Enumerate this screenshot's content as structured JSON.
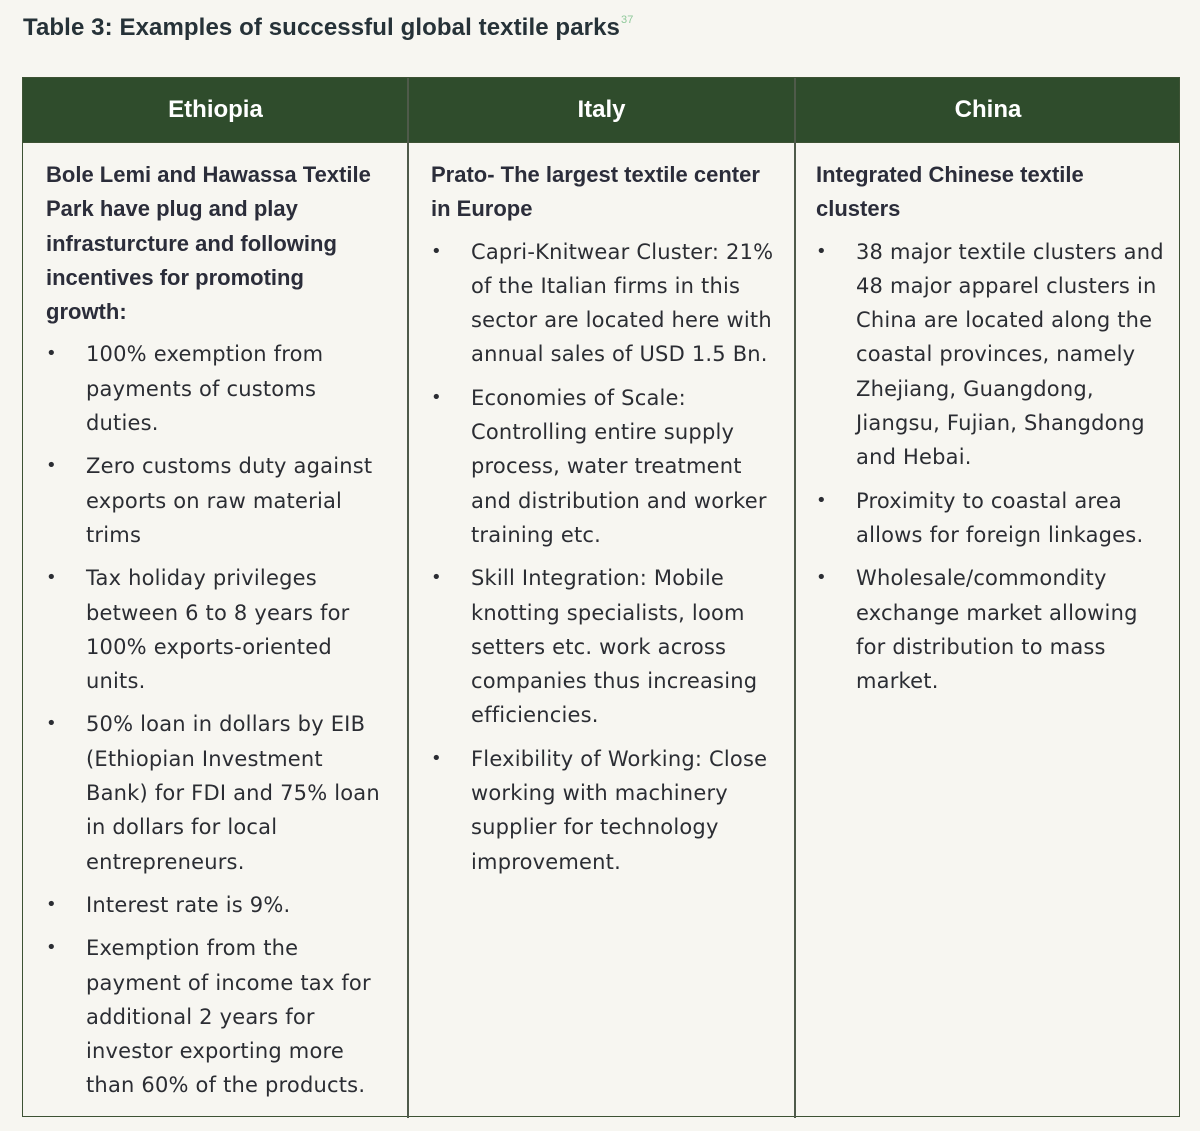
{
  "caption": {
    "title": "Table 3: Examples of successful global textile parks",
    "footnote": "37"
  },
  "table": {
    "headers": [
      "Ethiopia",
      "Italy",
      "China"
    ],
    "columns": [
      {
        "lead": "Bole Lemi and Hawassa Textile Park have plug and play infrasturcture and following incentives for promoting growth:",
        "items": [
          "100% exemption from payments of customs duties.",
          "Zero customs duty against exports on raw material trims",
          "Tax holiday privileges between 6 to 8 years for 100% exports-oriented units.",
          "50% loan in dollars by EIB (Ethiopian Investment Bank) for FDI and 75% loan in dollars for local entrepreneurs.",
          "Interest rate is 9%.",
          "Exemption from the payment of income tax for additional 2 years for investor exporting more than 60% of the products."
        ]
      },
      {
        "lead": "Prato- The largest textile center in Europe",
        "items": [
          "Capri-Knitwear Cluster: 21% of the Italian firms in this sector are located here with annual sales of USD 1.5 Bn.",
          "Economies of Scale: Controlling entire supply process, water treatment and distribution and worker training etc.",
          "Skill Integration: Mobile knotting specialists, loom setters etc. work across companies thus increasing efficiencies.",
          "Flexibility of Working: Close working with machinery supplier for technology improvement."
        ]
      },
      {
        "lead": "Integrated Chinese textile clusters",
        "items": [
          "38 major textile clusters and 48 major apparel clusters in China are located along the coastal provinces, namely Zhejiang, Guangdong, Jiangsu, Fujian, Shangdong and Hebai.",
          "Proximity to coastal area allows for foreign linkages.",
          "Wholesale/commondity exchange market allowing for distribution to mass market."
        ]
      }
    ]
  }
}
